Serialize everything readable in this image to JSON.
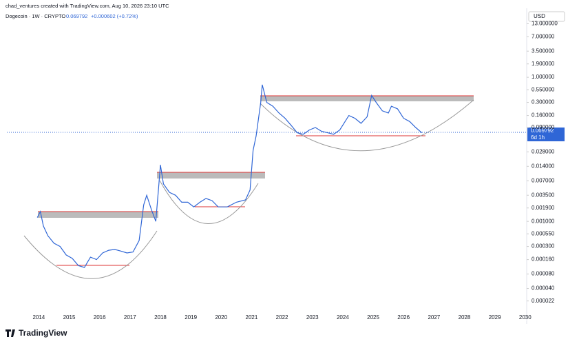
{
  "header": {
    "credit": "chad_ventures created with TradingView.com, Aug 10, 2026 23:10 UTC",
    "symbol": "Dogecoin · 1W · CRYPTO",
    "last": "0.069792",
    "change": "+0.000602 (+0.72%)",
    "currency": "USD",
    "price_tag": "0.069792",
    "countdown": "6d 1h",
    "logo": "TradingView"
  },
  "chart_data": {
    "type": "line",
    "log_scale": true,
    "xlim": [
      2012.95,
      2030.05
    ],
    "xticks": [
      2014,
      2015,
      2016,
      2017,
      2018,
      2019,
      2020,
      2021,
      2022,
      2023,
      2024,
      2025,
      2026,
      2027,
      2028,
      2029,
      2030
    ],
    "ylim": [
      1.2e-05,
      21
    ],
    "yticks": [
      {
        "value": 13,
        "label": "13.000000"
      },
      {
        "value": 7,
        "label": "7.000000"
      },
      {
        "value": 3.5,
        "label": "3.500000"
      },
      {
        "value": 1.9,
        "label": "1.900000"
      },
      {
        "value": 1,
        "label": "1.000000"
      },
      {
        "value": 0.55,
        "label": "0.550000"
      },
      {
        "value": 0.3,
        "label": "0.300000"
      },
      {
        "value": 0.16,
        "label": "0.160000"
      },
      {
        "value": 0.09,
        "label": "0.090000"
      },
      {
        "value": 0.028,
        "label": "0.028000"
      },
      {
        "value": 0.014,
        "label": "0.014000"
      },
      {
        "value": 0.007,
        "label": "0.007000"
      },
      {
        "value": 0.0035,
        "label": "0.003500"
      },
      {
        "value": 0.0019,
        "label": "0.001900"
      },
      {
        "value": 0.001,
        "label": "0.001000"
      },
      {
        "value": 0.00055,
        "label": "0.000550"
      },
      {
        "value": 0.0003,
        "label": "0.000300"
      },
      {
        "value": 0.00016,
        "label": "0.000160"
      },
      {
        "value": 8e-05,
        "label": "0.000080"
      },
      {
        "value": 4e-05,
        "label": "0.000040"
      },
      {
        "value": 2.2e-05,
        "label": "0.000022"
      }
    ],
    "series": [
      {
        "color": "#2f66d6",
        "x": [
          2013.95,
          2014.05,
          2014.15,
          2014.3,
          2014.5,
          2014.7,
          2014.9,
          2015.1,
          2015.3,
          2015.5,
          2015.7,
          2015.9,
          2016.1,
          2016.3,
          2016.5,
          2016.7,
          2016.9,
          2017.1,
          2017.3,
          2017.45,
          2017.55,
          2017.7,
          2017.85,
          2017.95,
          2018.0,
          2018.1,
          2018.3,
          2018.5,
          2018.7,
          2018.9,
          2019.1,
          2019.3,
          2019.5,
          2019.7,
          2019.9,
          2020.2,
          2020.5,
          2020.8,
          2020.95,
          2021.05,
          2021.15,
          2021.3,
          2021.35,
          2021.5,
          2021.7,
          2021.9,
          2022.1,
          2022.3,
          2022.5,
          2022.7,
          2022.9,
          2023.1,
          2023.3,
          2023.5,
          2023.7,
          2023.9,
          2024.2,
          2024.4,
          2024.6,
          2024.8,
          2024.95,
          2025.1,
          2025.3,
          2025.5,
          2025.6,
          2025.8,
          2026.0,
          2026.2,
          2026.4,
          2026.6
        ],
        "values": [
          0.0012,
          0.0016,
          0.0008,
          0.0005,
          0.00035,
          0.0003,
          0.0002,
          0.00017,
          0.00012,
          0.00011,
          0.00018,
          0.00016,
          0.00022,
          0.00025,
          0.00026,
          0.00024,
          0.00022,
          0.00023,
          0.0004,
          0.0022,
          0.0035,
          0.0018,
          0.001,
          0.006,
          0.015,
          0.006,
          0.004,
          0.0035,
          0.0025,
          0.0025,
          0.002,
          0.0025,
          0.003,
          0.0027,
          0.002,
          0.002,
          0.0025,
          0.0028,
          0.0045,
          0.03,
          0.06,
          0.3,
          0.7,
          0.3,
          0.25,
          0.18,
          0.14,
          0.1,
          0.07,
          0.065,
          0.08,
          0.09,
          0.075,
          0.07,
          0.065,
          0.08,
          0.16,
          0.14,
          0.11,
          0.15,
          0.42,
          0.3,
          0.2,
          0.18,
          0.25,
          0.22,
          0.14,
          0.12,
          0.09,
          0.069792
        ]
      }
    ]
  }
}
